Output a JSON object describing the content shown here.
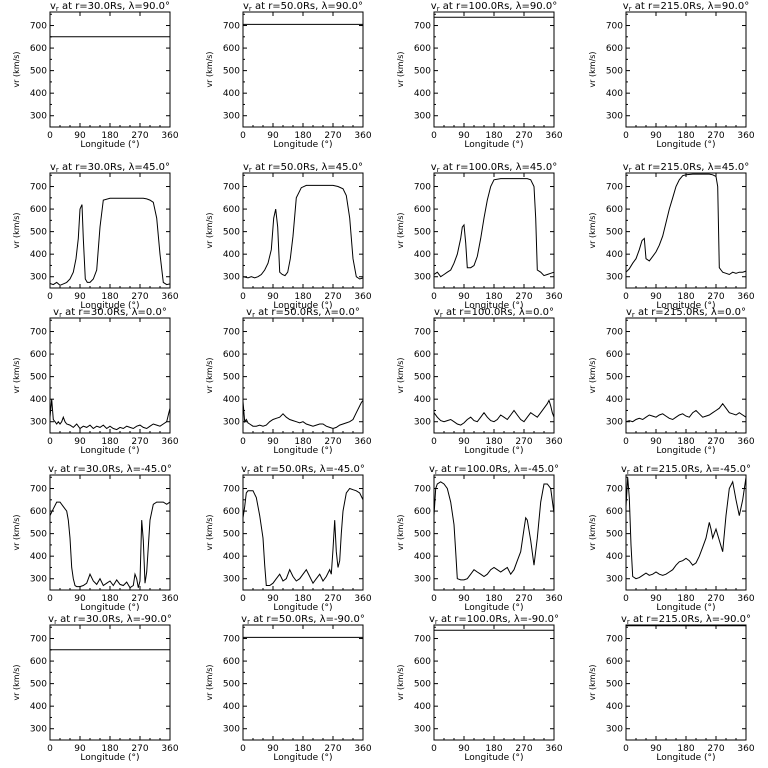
{
  "axis_text": {
    "xlabel": "Longitude (°)",
    "ylabel": "vr (km/s)",
    "xticks": [
      "0",
      "90",
      "180",
      "270",
      "360"
    ],
    "yticks": [
      "300",
      "400",
      "500",
      "600",
      "700"
    ]
  },
  "chart_data": [
    {
      "type": "line",
      "title": "vr at r=30.0Rs, λ=90.0°",
      "r": "30.0",
      "lat": "90.0",
      "xlim": [
        0,
        360
      ],
      "ylim": [
        250,
        760
      ],
      "x": [
        0,
        360
      ],
      "y": [
        650,
        650
      ]
    },
    {
      "type": "line",
      "title": "vr at r=50.0Rs, λ=90.0°",
      "r": "50.0",
      "lat": "90.0",
      "xlim": [
        0,
        360
      ],
      "ylim": [
        250,
        760
      ],
      "x": [
        0,
        360
      ],
      "y": [
        705,
        705
      ]
    },
    {
      "type": "line",
      "title": "vr at r=100.0Rs, λ=90.0°",
      "r": "100.0",
      "lat": "90.0",
      "xlim": [
        0,
        360
      ],
      "ylim": [
        250,
        760
      ],
      "x": [
        0,
        360
      ],
      "y": [
        737,
        737
      ]
    },
    {
      "type": "line",
      "title": "vr at r=215.0Rs, λ=90.0°",
      "r": "215.0",
      "lat": "90.0",
      "xlim": [
        0,
        360
      ],
      "ylim": [
        250,
        760
      ],
      "x": [
        0,
        360
      ],
      "y": [
        760,
        760
      ]
    },
    {
      "type": "line",
      "title": "vr at r=30.0Rs, λ=45.0°",
      "r": "30.0",
      "lat": "45.0",
      "xlim": [
        0,
        360
      ],
      "ylim": [
        250,
        760
      ],
      "x": [
        0,
        10,
        20,
        30,
        40,
        50,
        60,
        70,
        78,
        85,
        90,
        96,
        100,
        106,
        112,
        120,
        130,
        140,
        150,
        160,
        180,
        200,
        220,
        240,
        260,
        270,
        280,
        290,
        300,
        310,
        320,
        330,
        340,
        350,
        360
      ],
      "y": [
        270,
        265,
        275,
        262,
        268,
        275,
        290,
        320,
        380,
        470,
        600,
        620,
        470,
        290,
        275,
        275,
        290,
        330,
        520,
        640,
        648,
        648,
        648,
        648,
        648,
        648,
        648,
        645,
        640,
        630,
        560,
        400,
        275,
        265,
        268
      ]
    },
    {
      "type": "line",
      "title": "vr at r=50.0Rs, λ=45.0°",
      "r": "50.0",
      "lat": "45.0",
      "xlim": [
        0,
        360
      ],
      "ylim": [
        250,
        760
      ],
      "x": [
        0,
        15,
        25,
        35,
        45,
        55,
        65,
        75,
        85,
        92,
        98,
        104,
        110,
        118,
        126,
        134,
        142,
        150,
        160,
        175,
        190,
        210,
        230,
        250,
        270,
        285,
        300,
        310,
        320,
        330,
        340,
        350,
        360
      ],
      "y": [
        300,
        295,
        300,
        295,
        300,
        310,
        330,
        360,
        420,
        560,
        600,
        520,
        320,
        310,
        305,
        320,
        380,
        480,
        650,
        695,
        705,
        705,
        705,
        705,
        705,
        700,
        690,
        660,
        560,
        380,
        300,
        290,
        295
      ]
    },
    {
      "type": "line",
      "title": "vr at r=100.0Rs, λ=45.0°",
      "r": "100.0",
      "lat": "45.0",
      "xlim": [
        0,
        360
      ],
      "ylim": [
        250,
        760
      ],
      "x": [
        0,
        10,
        20,
        30,
        40,
        50,
        60,
        70,
        80,
        85,
        90,
        95,
        100,
        110,
        120,
        130,
        140,
        150,
        160,
        170,
        180,
        200,
        220,
        240,
        260,
        280,
        290,
        300,
        305,
        310,
        320,
        330,
        340,
        350,
        360
      ],
      "y": [
        310,
        320,
        300,
        310,
        320,
        330,
        360,
        400,
        470,
        520,
        530,
        450,
        340,
        340,
        350,
        390,
        470,
        560,
        640,
        700,
        730,
        735,
        735,
        735,
        735,
        735,
        730,
        700,
        560,
        330,
        320,
        305,
        310,
        315,
        320
      ]
    },
    {
      "type": "line",
      "title": "vr at r=215.0Rs, λ=45.0°",
      "r": "215.0",
      "lat": "45.0",
      "xlim": [
        0,
        360
      ],
      "ylim": [
        250,
        760
      ],
      "x": [
        0,
        10,
        20,
        30,
        40,
        48,
        55,
        60,
        70,
        80,
        90,
        100,
        110,
        120,
        130,
        140,
        150,
        160,
        170,
        180,
        200,
        220,
        240,
        250,
        260,
        270,
        275,
        280,
        285,
        290,
        300,
        310,
        320,
        330,
        340,
        350,
        360
      ],
      "y": [
        320,
        335,
        360,
        380,
        420,
        460,
        470,
        380,
        370,
        390,
        410,
        440,
        480,
        540,
        600,
        650,
        700,
        730,
        748,
        752,
        755,
        755,
        755,
        755,
        752,
        745,
        700,
        340,
        330,
        320,
        315,
        310,
        320,
        315,
        320,
        320,
        325
      ]
    },
    {
      "type": "line",
      "title": "vr at r=30.0Rs, λ=0.0°",
      "r": "30.0",
      "lat": "0.0",
      "xlim": [
        0,
        360
      ],
      "ylim": [
        250,
        760
      ],
      "x": [
        0,
        5,
        10,
        15,
        20,
        25,
        30,
        35,
        40,
        45,
        50,
        60,
        70,
        80,
        90,
        100,
        110,
        120,
        130,
        140,
        150,
        160,
        170,
        180,
        190,
        200,
        210,
        220,
        230,
        240,
        250,
        260,
        270,
        280,
        290,
        300,
        310,
        320,
        330,
        340,
        350,
        355,
        360
      ],
      "y": [
        320,
        400,
        310,
        300,
        290,
        300,
        290,
        300,
        320,
        300,
        290,
        285,
        275,
        290,
        270,
        280,
        275,
        285,
        270,
        280,
        275,
        285,
        270,
        280,
        270,
        265,
        275,
        270,
        280,
        275,
        270,
        280,
        285,
        275,
        270,
        280,
        290,
        285,
        280,
        290,
        300,
        330,
        360
      ]
    },
    {
      "type": "line",
      "title": "vr at r=50.0Rs, λ=0.0°",
      "r": "50.0",
      "lat": "0.0",
      "xlim": [
        0,
        360
      ],
      "ylim": [
        250,
        760
      ],
      "x": [
        0,
        5,
        10,
        15,
        20,
        30,
        40,
        50,
        60,
        70,
        80,
        90,
        100,
        110,
        120,
        130,
        140,
        150,
        160,
        170,
        180,
        190,
        200,
        210,
        220,
        230,
        240,
        250,
        260,
        270,
        280,
        290,
        300,
        310,
        320,
        330,
        340,
        350,
        355,
        360
      ],
      "y": [
        390,
        300,
        310,
        295,
        290,
        280,
        280,
        285,
        280,
        285,
        300,
        310,
        315,
        320,
        335,
        320,
        310,
        305,
        300,
        295,
        300,
        290,
        285,
        280,
        285,
        290,
        290,
        280,
        275,
        270,
        275,
        285,
        290,
        295,
        300,
        310,
        340,
        370,
        385,
        395
      ]
    },
    {
      "type": "line",
      "title": "vr at r=100.0Rs, λ=0.0°",
      "r": "100.0",
      "lat": "0.0",
      "xlim": [
        0,
        360
      ],
      "ylim": [
        250,
        760
      ],
      "x": [
        0,
        10,
        20,
        30,
        40,
        50,
        60,
        70,
        80,
        90,
        100,
        110,
        120,
        130,
        140,
        150,
        160,
        170,
        180,
        190,
        200,
        210,
        220,
        230,
        240,
        250,
        260,
        270,
        280,
        290,
        300,
        310,
        320,
        330,
        340,
        345,
        350,
        355,
        360
      ],
      "y": [
        340,
        320,
        305,
        300,
        305,
        310,
        300,
        290,
        285,
        295,
        310,
        320,
        305,
        300,
        320,
        340,
        320,
        305,
        300,
        310,
        330,
        320,
        310,
        330,
        350,
        330,
        310,
        300,
        320,
        340,
        330,
        320,
        340,
        360,
        380,
        395,
        370,
        340,
        320
      ]
    },
    {
      "type": "line",
      "title": "vr at r=215.0Rs, λ=0.0°",
      "r": "215.0",
      "lat": "0.0",
      "xlim": [
        0,
        360
      ],
      "ylim": [
        250,
        760
      ],
      "x": [
        0,
        10,
        20,
        30,
        40,
        50,
        60,
        70,
        80,
        90,
        100,
        110,
        120,
        130,
        140,
        150,
        160,
        170,
        180,
        190,
        200,
        210,
        220,
        230,
        240,
        250,
        260,
        270,
        280,
        290,
        300,
        310,
        320,
        330,
        340,
        350,
        360
      ],
      "y": [
        300,
        305,
        300,
        310,
        315,
        310,
        320,
        330,
        325,
        320,
        330,
        335,
        325,
        315,
        310,
        320,
        330,
        335,
        325,
        320,
        340,
        350,
        335,
        320,
        325,
        330,
        340,
        350,
        360,
        380,
        360,
        340,
        335,
        330,
        340,
        330,
        320
      ]
    },
    {
      "type": "line",
      "title": "vr at r=30.0Rs, λ=-45.0°",
      "r": "30.0",
      "lat": "-45.0",
      "xlim": [
        0,
        360
      ],
      "ylim": [
        250,
        760
      ],
      "x": [
        0,
        10,
        20,
        30,
        40,
        50,
        55,
        60,
        65,
        70,
        75,
        80,
        90,
        100,
        110,
        120,
        130,
        140,
        150,
        160,
        170,
        180,
        190,
        200,
        210,
        220,
        230,
        240,
        250,
        255,
        260,
        265,
        270,
        275,
        280,
        285,
        290,
        300,
        310,
        320,
        330,
        340,
        350,
        360
      ],
      "y": [
        580,
        610,
        640,
        640,
        620,
        600,
        560,
        480,
        350,
        300,
        270,
        265,
        265,
        270,
        280,
        320,
        290,
        275,
        300,
        270,
        280,
        290,
        270,
        295,
        275,
        270,
        285,
        260,
        270,
        320,
        300,
        260,
        290,
        560,
        470,
        280,
        330,
        560,
        630,
        640,
        640,
        640,
        630,
        640
      ]
    },
    {
      "type": "line",
      "title": "vr at r=50.0Rs, λ=-45.0°",
      "r": "50.0",
      "lat": "-45.0",
      "xlim": [
        0,
        360
      ],
      "ylim": [
        250,
        760
      ],
      "x": [
        0,
        5,
        10,
        15,
        20,
        30,
        40,
        50,
        60,
        65,
        70,
        80,
        90,
        100,
        110,
        120,
        130,
        140,
        150,
        160,
        170,
        180,
        190,
        200,
        210,
        220,
        230,
        240,
        250,
        260,
        265,
        270,
        275,
        280,
        285,
        290,
        295,
        300,
        310,
        320,
        330,
        340,
        350,
        360
      ],
      "y": [
        570,
        620,
        680,
        690,
        690,
        690,
        660,
        580,
        480,
        360,
        270,
        270,
        280,
        300,
        320,
        290,
        300,
        340,
        310,
        290,
        300,
        320,
        340,
        310,
        280,
        300,
        320,
        290,
        310,
        340,
        320,
        430,
        560,
        420,
        350,
        380,
        500,
        600,
        680,
        700,
        695,
        690,
        680,
        650
      ]
    },
    {
      "type": "line",
      "title": "vr at r=100.0Rs, λ=-45.0°",
      "r": "100.0",
      "lat": "-45.0",
      "xlim": [
        0,
        360
      ],
      "ylim": [
        250,
        760
      ],
      "x": [
        0,
        5,
        10,
        20,
        30,
        40,
        50,
        60,
        65,
        70,
        80,
        90,
        100,
        110,
        120,
        130,
        140,
        150,
        160,
        170,
        180,
        190,
        200,
        210,
        220,
        230,
        240,
        250,
        260,
        270,
        275,
        280,
        290,
        300,
        310,
        320,
        330,
        340,
        350,
        360
      ],
      "y": [
        580,
        700,
        720,
        730,
        720,
        700,
        640,
        540,
        420,
        300,
        295,
        295,
        300,
        320,
        340,
        330,
        320,
        310,
        320,
        340,
        350,
        340,
        330,
        340,
        350,
        320,
        340,
        380,
        420,
        520,
        570,
        560,
        470,
        360,
        480,
        640,
        720,
        720,
        700,
        590
      ]
    },
    {
      "type": "line",
      "title": "vr at r=215.0Rs, λ=-45.0°",
      "r": "215.0",
      "lat": "-45.0",
      "xlim": [
        0,
        360
      ],
      "ylim": [
        250,
        760
      ],
      "x": [
        0,
        5,
        10,
        15,
        20,
        30,
        40,
        50,
        60,
        70,
        80,
        90,
        100,
        110,
        120,
        130,
        140,
        150,
        160,
        170,
        180,
        190,
        200,
        210,
        220,
        230,
        240,
        250,
        255,
        260,
        265,
        270,
        280,
        290,
        300,
        310,
        320,
        330,
        340,
        350,
        360
      ],
      "y": [
        620,
        750,
        660,
        450,
        310,
        300,
        305,
        315,
        325,
        315,
        320,
        330,
        320,
        315,
        320,
        330,
        340,
        360,
        375,
        380,
        390,
        380,
        360,
        370,
        400,
        440,
        480,
        550,
        520,
        480,
        500,
        520,
        470,
        420,
        580,
        700,
        730,
        650,
        580,
        650,
        750
      ]
    },
    {
      "type": "line",
      "title": "vr at r=30.0Rs, λ=-90.0°",
      "r": "30.0",
      "lat": "-90.0",
      "xlim": [
        0,
        360
      ],
      "ylim": [
        250,
        760
      ],
      "x": [
        0,
        360
      ],
      "y": [
        650,
        650
      ]
    },
    {
      "type": "line",
      "title": "vr at r=50.0Rs, λ=-90.0°",
      "r": "50.0",
      "lat": "-90.0",
      "xlim": [
        0,
        360
      ],
      "ylim": [
        250,
        760
      ],
      "x": [
        0,
        360
      ],
      "y": [
        705,
        705
      ]
    },
    {
      "type": "line",
      "title": "vr at r=100.0Rs, λ=-90.0°",
      "r": "100.0",
      "lat": "-90.0",
      "xlim": [
        0,
        360
      ],
      "ylim": [
        250,
        760
      ],
      "x": [
        0,
        360
      ],
      "y": [
        737,
        737
      ]
    },
    {
      "type": "line",
      "title": "vr at r=215.0Rs, λ=-90.0°",
      "r": "215.0",
      "lat": "-90.0",
      "xlim": [
        0,
        360
      ],
      "ylim": [
        250,
        760
      ],
      "x": [
        0,
        360
      ],
      "y": [
        757,
        757
      ]
    }
  ]
}
